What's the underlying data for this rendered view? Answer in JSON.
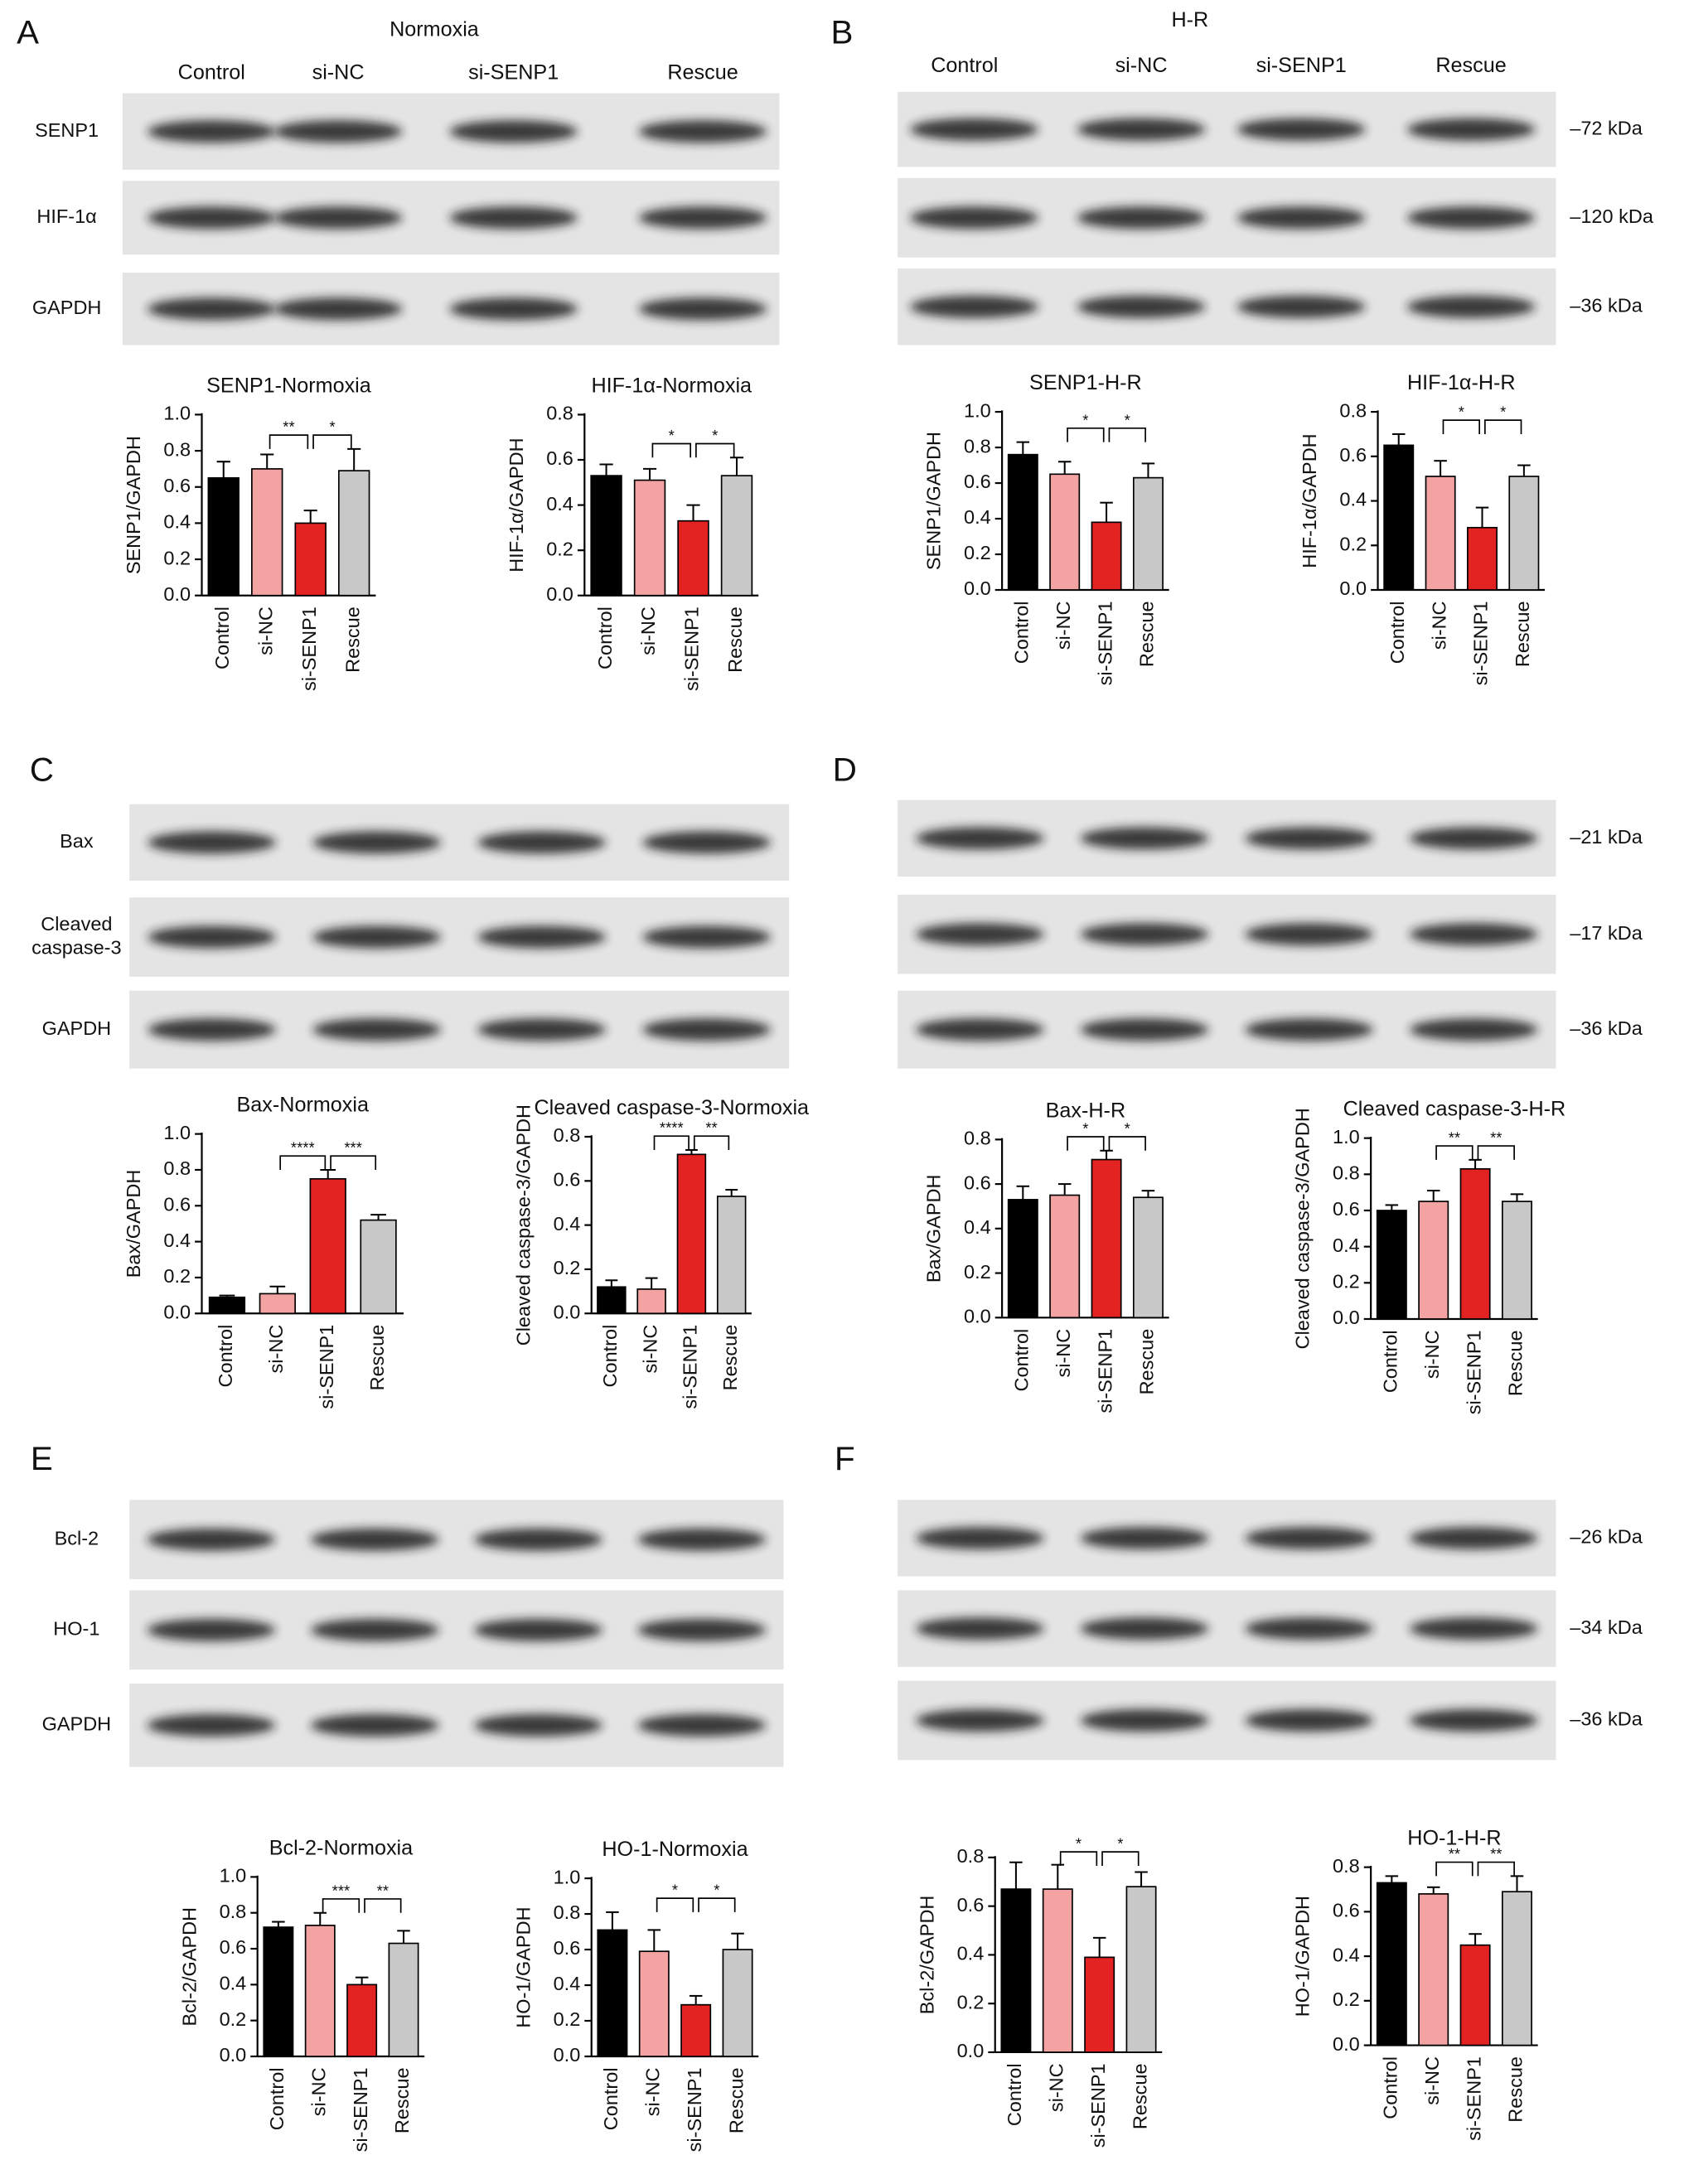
{
  "blots": [
    {
      "letter": "A",
      "title": "Normoxia",
      "lanes": [
        "Control",
        "si-NC",
        "si-SENP1",
        "Rescue"
      ],
      "rows": [
        [
          "SENP1"
        ],
        [
          "HIF-1α"
        ],
        [
          "GAPDH"
        ]
      ]
    },
    {
      "letter": "B",
      "title": "H-R",
      "lanes": [
        "Control",
        "si-NC",
        "si-SENP1",
        "Rescue"
      ],
      "markers": [
        "–72 kDa",
        "–120 kDa",
        "–36 kDa"
      ]
    },
    {
      "letter": "C",
      "rows": [
        [
          "Bax"
        ],
        [
          "Cleaved",
          "caspase-3"
        ],
        [
          "GAPDH"
        ]
      ]
    },
    {
      "letter": "D",
      "markers": [
        "–21 kDa",
        "–17 kDa",
        "–36 kDa"
      ]
    },
    {
      "letter": "E",
      "rows": [
        [
          "Bcl-2"
        ],
        [
          "HO-1"
        ],
        [
          "GAPDH"
        ]
      ]
    },
    {
      "letter": "F",
      "markers": [
        "–26 kDa",
        "–34 kDa",
        "–36 kDa"
      ]
    }
  ],
  "chart_data": [
    {
      "type": "bar",
      "title": "SENP1-Normoxia",
      "ylabel": "SENP1/GAPDH",
      "categories": [
        "Control",
        "si-NC",
        "si-SENP1",
        "Rescue"
      ],
      "values": [
        0.65,
        0.7,
        0.4,
        0.69
      ],
      "errors": [
        0.09,
        0.08,
        0.07,
        0.12
      ],
      "colors": [
        "#000000",
        "#f4a3a3",
        "#e32222",
        "#c8c8c8"
      ],
      "ylim": [
        0,
        1.0
      ],
      "yticks": [
        {
          "value": 0,
          "label": "0.0"
        },
        0.2,
        0.4,
        0.6,
        0.8,
        {
          "value": 1,
          "label": "1.0"
        }
      ],
      "significance": [
        {
          "between": [
            "si-NC",
            "si-SENP1"
          ],
          "label": "**"
        },
        {
          "between": [
            "si-SENP1",
            "Rescue"
          ],
          "label": "*"
        }
      ]
    },
    {
      "type": "bar",
      "title": "HIF-1α-Normoxia",
      "ylabel": "HIF-1α/GAPDH",
      "categories": [
        "Control",
        "si-NC",
        "si-SENP1",
        "Rescue"
      ],
      "values": [
        0.53,
        0.51,
        0.33,
        0.53
      ],
      "errors": [
        0.05,
        0.05,
        0.07,
        0.08
      ],
      "colors": [
        "#000000",
        "#f4a3a3",
        "#e32222",
        "#c8c8c8"
      ],
      "ylim": [
        0,
        0.8
      ],
      "yticks": [
        {
          "value": 0,
          "label": "0.0"
        },
        0.2,
        0.4,
        0.6,
        0.8
      ],
      "significance": [
        {
          "between": [
            "si-NC",
            "si-SENP1"
          ],
          "label": "*"
        },
        {
          "between": [
            "si-SENP1",
            "Rescue"
          ],
          "label": "*"
        }
      ]
    },
    {
      "type": "bar",
      "title": "SENP1-H-R",
      "ylabel": "SENP1/GAPDH",
      "categories": [
        "Control",
        "si-NC",
        "si-SENP1",
        "Rescue"
      ],
      "values": [
        0.76,
        0.65,
        0.38,
        0.63
      ],
      "errors": [
        0.07,
        0.07,
        0.11,
        0.08
      ],
      "colors": [
        "#000000",
        "#f4a3a3",
        "#e32222",
        "#c8c8c8"
      ],
      "ylim": [
        0,
        1.0
      ],
      "yticks": [
        {
          "value": 0,
          "label": "0.0"
        },
        0.2,
        0.4,
        0.6,
        0.8,
        {
          "value": 1,
          "label": "1.0"
        }
      ],
      "significance": [
        {
          "between": [
            "si-NC",
            "si-SENP1"
          ],
          "label": "*"
        },
        {
          "between": [
            "si-SENP1",
            "Rescue"
          ],
          "label": "*"
        }
      ]
    },
    {
      "type": "bar",
      "title": "HIF-1α-H-R",
      "ylabel": "HIF-1α/GAPDH",
      "categories": [
        "Control",
        "si-NC",
        "si-SENP1",
        "Rescue"
      ],
      "values": [
        0.65,
        0.51,
        0.28,
        0.51
      ],
      "errors": [
        0.05,
        0.07,
        0.09,
        0.05
      ],
      "colors": [
        "#000000",
        "#f4a3a3",
        "#e32222",
        "#c8c8c8"
      ],
      "ylim": [
        0,
        0.8
      ],
      "yticks": [
        {
          "value": 0,
          "label": "0.0"
        },
        0.2,
        0.4,
        0.6,
        0.8
      ],
      "significance": [
        {
          "between": [
            "si-NC",
            "si-SENP1"
          ],
          "label": "*"
        },
        {
          "between": [
            "si-SENP1",
            "Rescue"
          ],
          "label": "*"
        }
      ]
    },
    {
      "type": "bar",
      "title": "Bax-Normoxia",
      "ylabel": "Bax/GAPDH",
      "categories": [
        "Control",
        "si-NC",
        "si-SENP1",
        "Rescue"
      ],
      "values": [
        0.09,
        0.11,
        0.75,
        0.52
      ],
      "errors": [
        0.01,
        0.04,
        0.05,
        0.03
      ],
      "colors": [
        "#000000",
        "#f4a3a3",
        "#e32222",
        "#c8c8c8"
      ],
      "ylim": [
        0,
        1.0
      ],
      "yticks": [
        {
          "value": 0,
          "label": "0.0"
        },
        0.2,
        0.4,
        0.6,
        0.8,
        {
          "value": 1,
          "label": "1.0"
        }
      ],
      "significance": [
        {
          "between": [
            "si-NC",
            "si-SENP1"
          ],
          "label": "****"
        },
        {
          "between": [
            "si-SENP1",
            "Rescue"
          ],
          "label": "***"
        }
      ]
    },
    {
      "type": "bar",
      "title": "Cleaved caspase-3-Normoxia",
      "ylabel": "Cleaved caspase-3/GAPDH",
      "categories": [
        "Control",
        "si-NC",
        "si-SENP1",
        "Rescue"
      ],
      "values": [
        0.12,
        0.11,
        0.72,
        0.53
      ],
      "errors": [
        0.03,
        0.05,
        0.02,
        0.03
      ],
      "colors": [
        "#000000",
        "#f4a3a3",
        "#e32222",
        "#c8c8c8"
      ],
      "ylim": [
        0,
        0.8
      ],
      "yticks": [
        {
          "value": 0,
          "label": "0.0"
        },
        0.2,
        0.4,
        0.6,
        0.8
      ],
      "significance": [
        {
          "between": [
            "si-NC",
            "si-SENP1"
          ],
          "label": "****"
        },
        {
          "between": [
            "si-SENP1",
            "Rescue"
          ],
          "label": "**"
        }
      ]
    },
    {
      "type": "bar",
      "title": "Bax-H-R",
      "ylabel": "Bax/GAPDH",
      "categories": [
        "Control",
        "si-NC",
        "si-SENP1",
        "Rescue"
      ],
      "values": [
        0.53,
        0.55,
        0.71,
        0.54
      ],
      "errors": [
        0.06,
        0.05,
        0.04,
        0.03
      ],
      "colors": [
        "#000000",
        "#f4a3a3",
        "#e32222",
        "#c8c8c8"
      ],
      "ylim": [
        0,
        0.8
      ],
      "yticks": [
        {
          "value": 0,
          "label": "0.0"
        },
        0.2,
        0.4,
        0.6,
        0.8
      ],
      "significance": [
        {
          "between": [
            "si-NC",
            "si-SENP1"
          ],
          "label": "*"
        },
        {
          "between": [
            "si-SENP1",
            "Rescue"
          ],
          "label": "*"
        }
      ]
    },
    {
      "type": "bar",
      "title": "Cleaved caspase-3-H-R",
      "ylabel": "Cleaved caspase-3/GAPDH",
      "categories": [
        "Control",
        "si-NC",
        "si-SENP1",
        "Rescue"
      ],
      "values": [
        0.6,
        0.65,
        0.83,
        0.65
      ],
      "errors": [
        0.03,
        0.06,
        0.05,
        0.04
      ],
      "colors": [
        "#000000",
        "#f4a3a3",
        "#e32222",
        "#c8c8c8"
      ],
      "ylim": [
        0,
        1.0
      ],
      "yticks": [
        {
          "value": 0,
          "label": "0.0"
        },
        0.2,
        0.4,
        0.6,
        0.8,
        {
          "value": 1,
          "label": "1.0"
        }
      ],
      "significance": [
        {
          "between": [
            "si-NC",
            "si-SENP1"
          ],
          "label": "**"
        },
        {
          "between": [
            "si-SENP1",
            "Rescue"
          ],
          "label": "**"
        }
      ]
    },
    {
      "type": "bar",
      "title": "Bcl-2-Normoxia",
      "ylabel": "Bcl-2/GAPDH",
      "categories": [
        "Control",
        "si-NC",
        "si-SENP1",
        "Rescue"
      ],
      "values": [
        0.72,
        0.73,
        0.4,
        0.63
      ],
      "errors": [
        0.03,
        0.07,
        0.04,
        0.07
      ],
      "colors": [
        "#000000",
        "#f4a3a3",
        "#e32222",
        "#c8c8c8"
      ],
      "ylim": [
        0,
        1.0
      ],
      "yticks": [
        {
          "value": 0,
          "label": "0.0"
        },
        0.2,
        0.4,
        0.6,
        0.8,
        {
          "value": 1,
          "label": "1.0"
        }
      ],
      "significance": [
        {
          "between": [
            "si-NC",
            "si-SENP1"
          ],
          "label": "***"
        },
        {
          "between": [
            "si-SENP1",
            "Rescue"
          ],
          "label": "**"
        }
      ]
    },
    {
      "type": "bar",
      "title": "HO-1-Normoxia",
      "ylabel": "HO-1/GAPDH",
      "categories": [
        "Control",
        "si-NC",
        "si-SENP1",
        "Rescue"
      ],
      "values": [
        0.71,
        0.59,
        0.29,
        0.6
      ],
      "errors": [
        0.1,
        0.12,
        0.05,
        0.09
      ],
      "colors": [
        "#000000",
        "#f4a3a3",
        "#e32222",
        "#c8c8c8"
      ],
      "ylim": [
        0,
        1.0
      ],
      "yticks": [
        {
          "value": 0,
          "label": "0.0"
        },
        0.2,
        0.4,
        0.6,
        0.8,
        {
          "value": 1,
          "label": "1.0"
        }
      ],
      "significance": [
        {
          "between": [
            "si-NC",
            "si-SENP1"
          ],
          "label": "*"
        },
        {
          "between": [
            "si-SENP1",
            "Rescue"
          ],
          "label": "*"
        }
      ]
    },
    {
      "type": "bar",
      "ylabel": "Bcl-2/GAPDH",
      "categories": [
        "Control",
        "si-NC",
        "si-SENP1",
        "Rescue"
      ],
      "values": [
        0.67,
        0.67,
        0.39,
        0.68
      ],
      "errors": [
        0.11,
        0.1,
        0.08,
        0.06
      ],
      "colors": [
        "#000000",
        "#f4a3a3",
        "#e32222",
        "#c8c8c8"
      ],
      "ylim": [
        0,
        0.8
      ],
      "yticks": [
        {
          "value": 0,
          "label": "0.0"
        },
        0.2,
        0.4,
        0.6,
        0.8
      ],
      "significance": [
        {
          "between": [
            "si-NC",
            "si-SENP1"
          ],
          "label": "*"
        },
        {
          "between": [
            "si-SENP1",
            "Rescue"
          ],
          "label": "*"
        }
      ]
    },
    {
      "type": "bar",
      "title": "HO-1-H-R",
      "ylabel": "HO-1/GAPDH",
      "categories": [
        "Control",
        "si-NC",
        "si-SENP1",
        "Rescue"
      ],
      "values": [
        0.73,
        0.68,
        0.45,
        0.69
      ],
      "errors": [
        0.03,
        0.03,
        0.05,
        0.07
      ],
      "colors": [
        "#000000",
        "#f4a3a3",
        "#e32222",
        "#c8c8c8"
      ],
      "ylim": [
        0,
        0.8
      ],
      "yticks": [
        {
          "value": 0,
          "label": "0.0"
        },
        0.2,
        0.4,
        0.6,
        0.8
      ],
      "significance": [
        {
          "between": [
            "si-NC",
            "si-SENP1"
          ],
          "label": "**"
        },
        {
          "between": [
            "si-SENP1",
            "Rescue"
          ],
          "label": "**"
        }
      ]
    }
  ]
}
